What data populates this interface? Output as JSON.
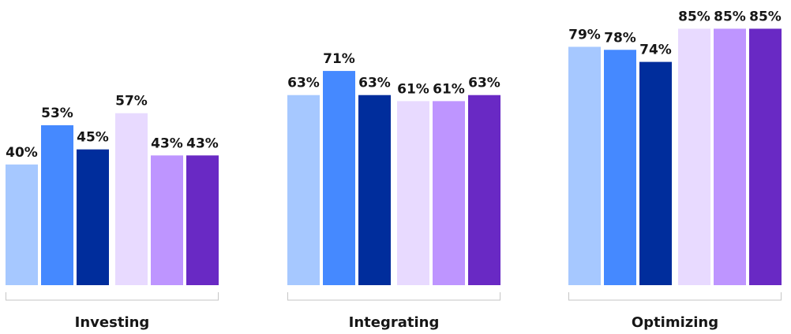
{
  "chart_data": {
    "type": "bar",
    "categories": [
      "Investing",
      "Integrating",
      "Optimizing"
    ],
    "groups": [
      {
        "subgroups": [
          {
            "values": [
              40,
              53,
              45
            ],
            "colors": [
              "#a6c8ff",
              "#4589ff",
              "#002d9c"
            ]
          },
          {
            "values": [
              57,
              43,
              43
            ],
            "colors": [
              "#e8daff",
              "#be95ff",
              "#6929c4"
            ]
          }
        ]
      },
      {
        "subgroups": [
          {
            "values": [
              63,
              71,
              63
            ],
            "colors": [
              "#a6c8ff",
              "#4589ff",
              "#002d9c"
            ]
          },
          {
            "values": [
              61,
              61,
              63
            ],
            "colors": [
              "#e8daff",
              "#be95ff",
              "#6929c4"
            ]
          }
        ]
      },
      {
        "subgroups": [
          {
            "values": [
              79,
              78,
              74
            ],
            "colors": [
              "#a6c8ff",
              "#4589ff",
              "#002d9c"
            ]
          },
          {
            "values": [
              85,
              85,
              85
            ],
            "colors": [
              "#e8daff",
              "#be95ff",
              "#6929c4"
            ]
          }
        ]
      }
    ],
    "value_suffix": "%",
    "ylim": [
      0,
      100
    ],
    "grid": false,
    "legend": "none"
  }
}
